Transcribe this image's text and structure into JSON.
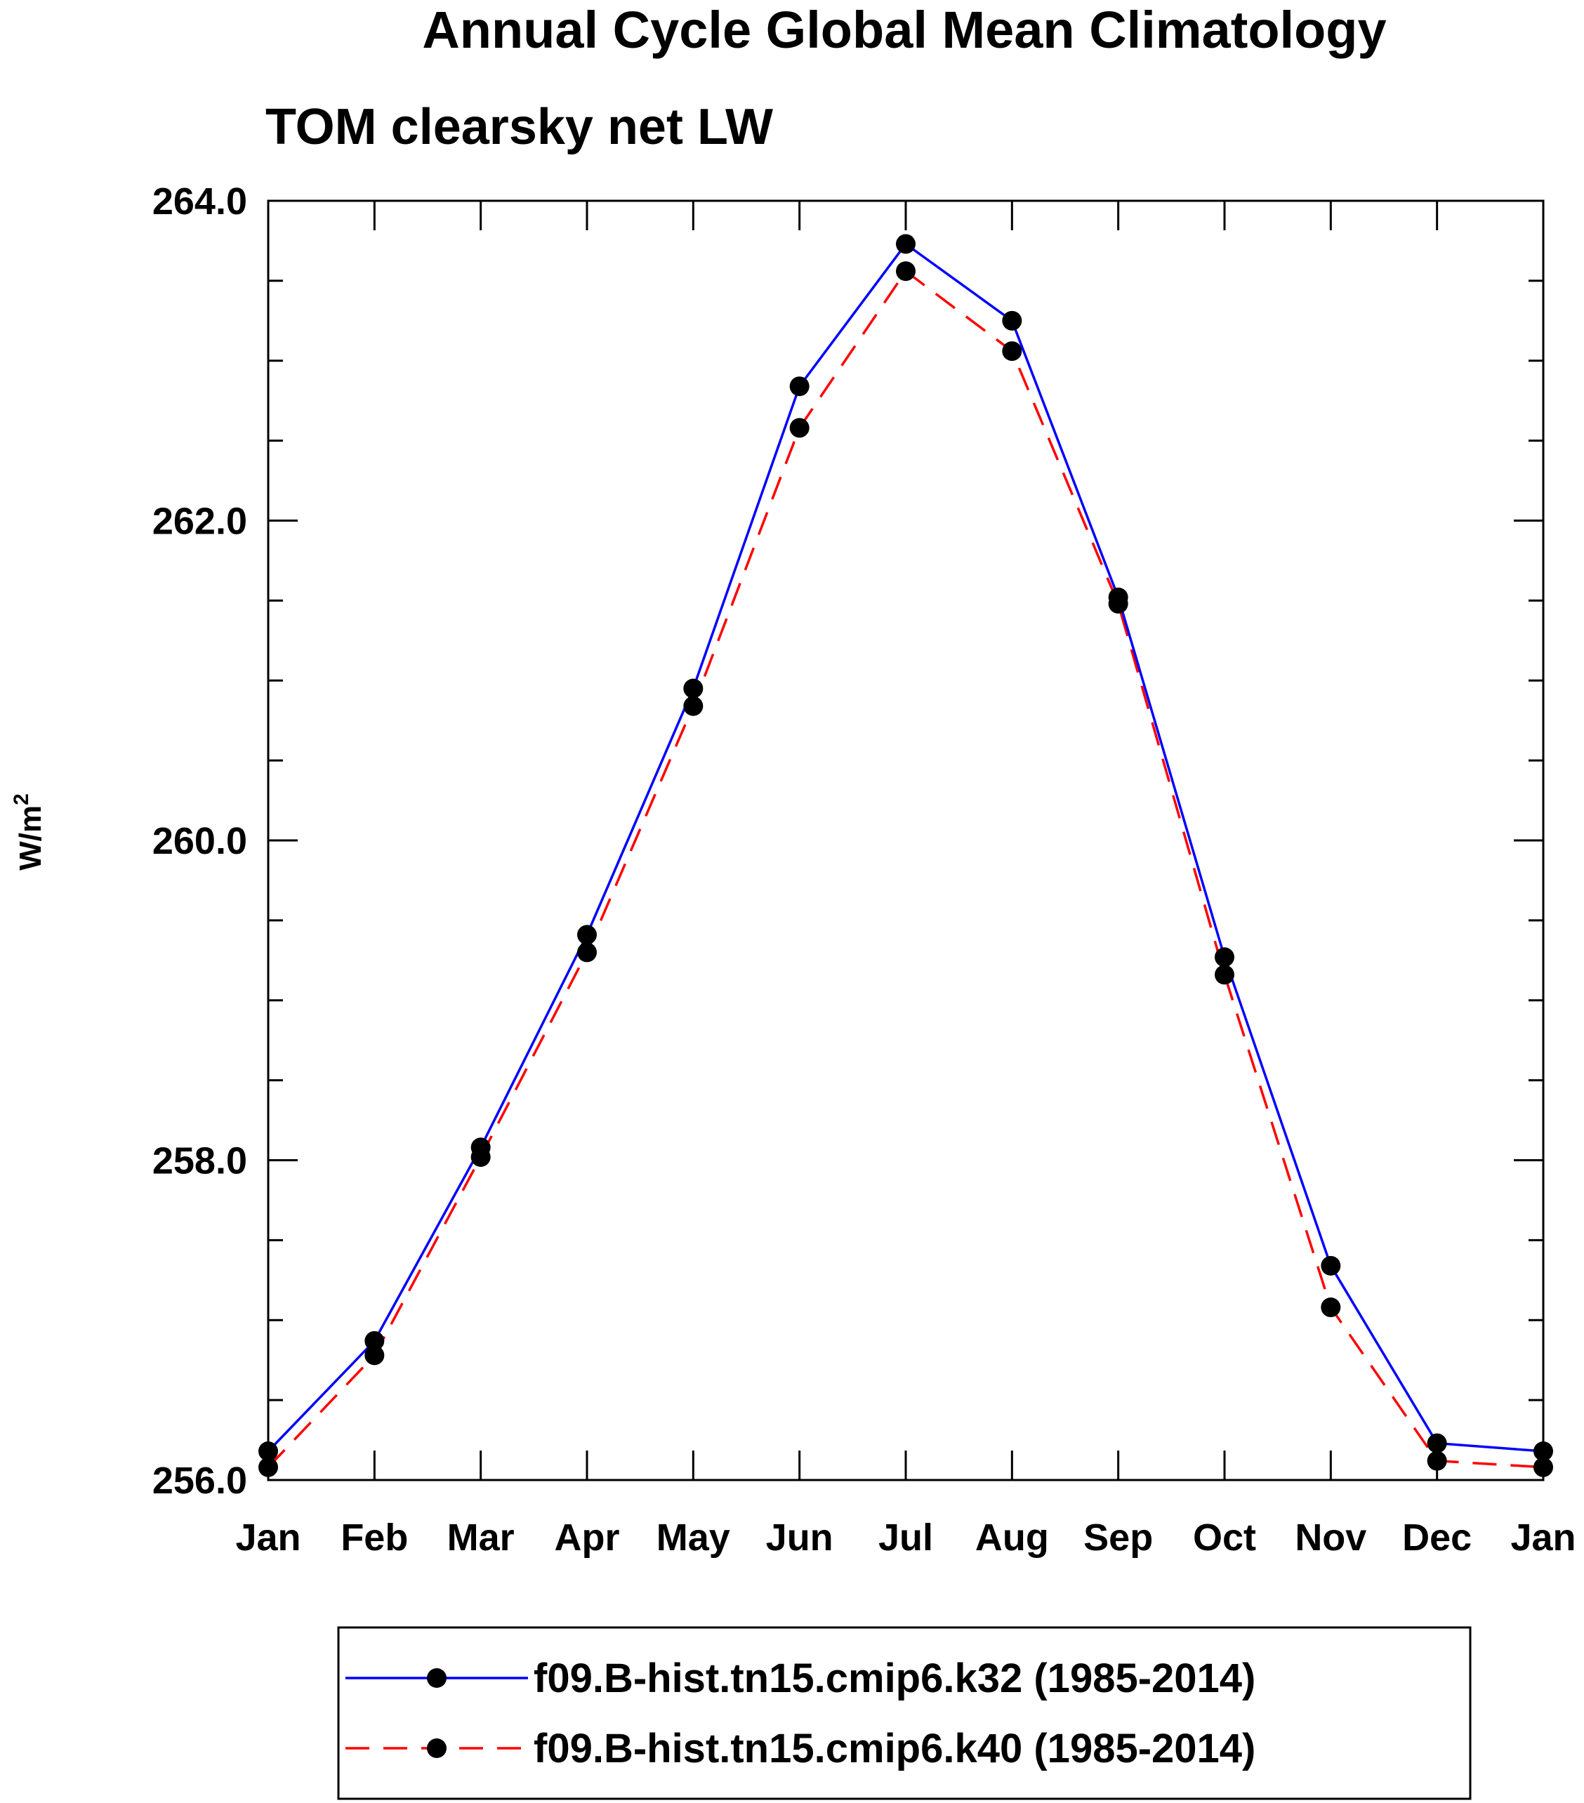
{
  "chart_data": {
    "type": "line",
    "title": "Annual Cycle Global Mean Climatology",
    "subtitle": "TOM clearsky net LW",
    "ylabel_base": "W/m",
    "ylabel_sup": "2",
    "xlabel": "",
    "categories": [
      "Jan",
      "Feb",
      "Mar",
      "Apr",
      "May",
      "Jun",
      "Jul",
      "Aug",
      "Sep",
      "Oct",
      "Nov",
      "Dec",
      "Jan"
    ],
    "ylim": [
      256.0,
      264.0
    ],
    "yticks": [
      "256.0",
      "258.0",
      "260.0",
      "262.0",
      "264.0"
    ],
    "y_minor_step": 0.5,
    "series": [
      {
        "name": "f09.B-hist.tn15.cmip6.k32 (1985-2014)",
        "color": "#0000ff",
        "dash": "solid",
        "values": [
          256.18,
          256.87,
          258.08,
          259.41,
          260.95,
          262.84,
          263.73,
          263.25,
          261.52,
          259.27,
          257.34,
          256.23,
          256.18
        ]
      },
      {
        "name": "f09.B-hist.tn15.cmip6.k40 (1985-2014)",
        "color": "#ff0000",
        "dash": "dashed",
        "values": [
          256.08,
          256.78,
          258.02,
          259.3,
          260.84,
          262.58,
          263.56,
          263.06,
          261.48,
          259.16,
          257.08,
          256.12,
          256.08
        ]
      }
    ],
    "legend_position": "bottom"
  }
}
